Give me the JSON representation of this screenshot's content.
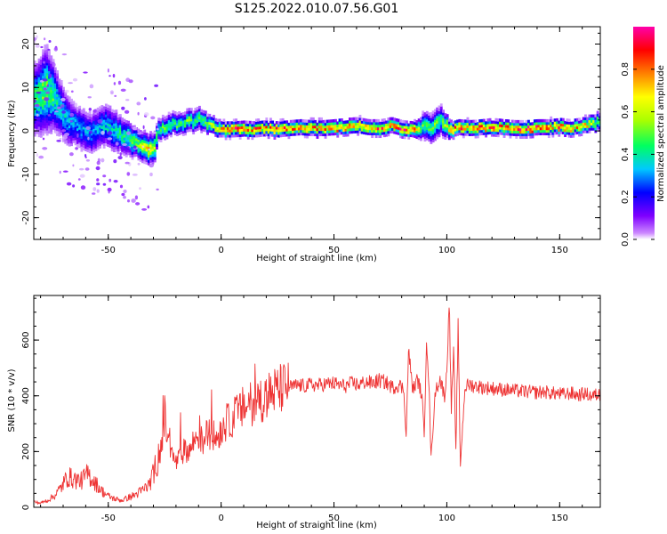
{
  "title": "S125.2022.010.07.56.G01",
  "chart_data": [
    {
      "type": "heatmap",
      "xlabel": "Height of straight line (km)",
      "ylabel": "Frequency (Hz)",
      "xlim": [
        -83,
        168
      ],
      "ylim": [
        -25,
        24
      ],
      "xticks": [
        -50,
        0,
        50,
        100,
        150
      ],
      "yticks": [
        -20,
        -10,
        0,
        10,
        20
      ],
      "grid": false,
      "colorbar": {
        "label": "Normalized spectral amplitude",
        "range": [
          0,
          1
        ],
        "ticks": [
          0.0,
          0.2,
          0.4,
          0.6,
          0.8
        ],
        "colormap": "gist_ncar_like",
        "colors": [
          "#ffffff",
          "#7f00ff",
          "#0000ff",
          "#00c8ff",
          "#00ff60",
          "#aaff00",
          "#ffff00",
          "#ff8000",
          "#ff0000",
          "#ff00aa"
        ]
      },
      "ridge": {
        "heights": [
          -82,
          -78,
          -75,
          -72,
          -68,
          -65,
          -62,
          -58,
          -55,
          -52,
          -48,
          -45,
          -42,
          -38,
          -35,
          -32,
          -30,
          -28,
          -26,
          -24,
          -22,
          -20,
          -18,
          -15,
          -12,
          -10,
          -8,
          -5,
          -2,
          0,
          5,
          10,
          15,
          20,
          25,
          30,
          35,
          40,
          45,
          50,
          55,
          60,
          65,
          70,
          75,
          80,
          85,
          88,
          90,
          92,
          95,
          97,
          100,
          102,
          105,
          110,
          115,
          120,
          125,
          130,
          135,
          140,
          145,
          150,
          155,
          160,
          165,
          168
        ],
        "frequency_hz": [
          7,
          9,
          8,
          5,
          2,
          1,
          0,
          -1,
          0,
          1,
          0,
          -1,
          -2,
          -3,
          -4,
          -4.5,
          -4,
          0,
          0.5,
          1,
          1.5,
          1,
          1.5,
          2,
          2,
          2.5,
          2,
          1,
          0.5,
          0,
          0,
          0.2,
          0,
          0.3,
          0,
          0.3,
          0.5,
          0.3,
          0.3,
          0.5,
          0.8,
          1,
          0.5,
          0.5,
          1,
          0.3,
          0,
          0.5,
          1,
          0.3,
          1.5,
          2.5,
          0.5,
          0,
          0.5,
          0.3,
          0.5,
          0.8,
          0.5,
          0.3,
          0.3,
          0.5,
          0.5,
          0.8,
          0.5,
          1,
          1.5,
          2
        ],
        "intensity": [
          0.45,
          0.5,
          0.45,
          0.35,
          0.35,
          0.3,
          0.3,
          0.3,
          0.3,
          0.35,
          0.35,
          0.4,
          0.45,
          0.5,
          0.6,
          0.7,
          0.6,
          0.4,
          0.45,
          0.5,
          0.45,
          0.45,
          0.45,
          0.5,
          0.45,
          0.5,
          0.45,
          0.55,
          0.6,
          0.75,
          0.85,
          0.8,
          0.75,
          0.75,
          0.8,
          0.75,
          0.75,
          0.8,
          0.75,
          0.8,
          0.75,
          0.75,
          0.7,
          0.8,
          0.75,
          0.85,
          0.8,
          0.5,
          0.45,
          0.45,
          0.5,
          0.45,
          0.6,
          0.85,
          0.8,
          0.75,
          0.8,
          0.8,
          0.75,
          0.85,
          0.8,
          0.85,
          0.75,
          0.8,
          0.7,
          0.7,
          0.55,
          0.5
        ],
        "spread_hz": [
          5,
          6,
          5,
          4,
          3.5,
          3,
          3,
          3,
          3,
          3,
          3,
          2.5,
          2.5,
          2,
          2,
          2,
          2,
          1.5,
          1.5,
          1.5,
          1.5,
          1.5,
          1.5,
          1.5,
          1.5,
          1.5,
          1.5,
          1.2,
          1.2,
          1,
          1,
          1,
          1,
          1,
          1,
          1,
          1,
          1,
          1,
          1,
          1,
          1,
          1,
          1,
          1,
          1,
          1,
          1.5,
          2,
          2,
          2,
          2,
          1.5,
          1,
          1,
          1,
          1,
          1,
          1,
          1,
          1,
          1,
          1,
          1,
          1,
          1,
          1.2,
          1.2
        ]
      }
    },
    {
      "type": "line",
      "xlabel": "Height of straight line (km)",
      "ylabel": "SNR (10 * v/v)",
      "xlim": [
        -83,
        168
      ],
      "ylim": [
        0,
        760
      ],
      "xticks": [
        -50,
        0,
        50,
        100,
        150
      ],
      "yticks": [
        0,
        200,
        400,
        600
      ],
      "grid": false,
      "series": [
        {
          "color": "#ee3333",
          "x": [
            -83,
            -80,
            -77,
            -74,
            -71,
            -68,
            -65,
            -62,
            -59,
            -56,
            -53,
            -50,
            -47,
            -44,
            -41,
            -38,
            -35,
            -32,
            -30,
            -28,
            -26,
            -25,
            -24,
            -22,
            -20,
            -18,
            -16,
            -14,
            -12,
            -10,
            -8,
            -6,
            -4,
            -2,
            0,
            2,
            4,
            6,
            8,
            10,
            13,
            16,
            19,
            22,
            25,
            28,
            31,
            34,
            37,
            40,
            43,
            46,
            49,
            52,
            55,
            58,
            61,
            64,
            67,
            70,
            73,
            76,
            79,
            81,
            82,
            83,
            85,
            87,
            89,
            90,
            91,
            92,
            93,
            95,
            97,
            99,
            100,
            101,
            102,
            103,
            104,
            105,
            106,
            108,
            110,
            113,
            116,
            119,
            122,
            125,
            128,
            131,
            134,
            137,
            140,
            143,
            146,
            149,
            152,
            155,
            158,
            161,
            164,
            168
          ],
          "y": [
            20,
            15,
            25,
            40,
            70,
            110,
            100,
            95,
            120,
            90,
            60,
            40,
            30,
            25,
            35,
            45,
            60,
            80,
            120,
            180,
            240,
            330,
            260,
            190,
            160,
            180,
            210,
            200,
            240,
            260,
            230,
            270,
            260,
            250,
            280,
            300,
            310,
            330,
            340,
            360,
            370,
            380,
            395,
            410,
            420,
            430,
            432,
            438,
            435,
            440,
            438,
            442,
            445,
            440,
            435,
            445,
            440,
            450,
            445,
            455,
            448,
            430,
            440,
            420,
            250,
            560,
            420,
            460,
            400,
            250,
            620,
            460,
            180,
            420,
            460,
            400,
            480,
            760,
            350,
            560,
            200,
            640,
            150,
            430,
            440,
            435,
            430,
            428,
            425,
            422,
            420,
            418,
            416,
            414,
            412,
            415,
            410,
            408,
            405,
            410,
            402,
            408,
            400,
            405
          ]
        }
      ]
    }
  ]
}
